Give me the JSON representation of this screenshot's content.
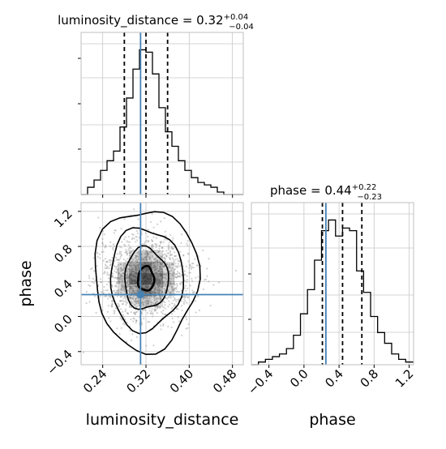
{
  "chart_data": {
    "type": "corner",
    "truths": {
      "luminosity_distance": 0.31,
      "phase": 0.25
    },
    "panels": [
      {
        "id": "hist-luminosity-distance",
        "type": "histogram",
        "title_main": "luminosity_distance = 0.32",
        "title_sup": "+0.04",
        "title_sub": "−0.04",
        "xlim": [
          0.2,
          0.5
        ],
        "bins": [
          0.2,
          0.212,
          0.224,
          0.236,
          0.248,
          0.26,
          0.272,
          0.284,
          0.296,
          0.308,
          0.32,
          0.332,
          0.344,
          0.356,
          0.368,
          0.38,
          0.392,
          0.404,
          0.416,
          0.428,
          0.44,
          0.452,
          0.464,
          0.476,
          0.488,
          0.5
        ],
        "counts": [
          0,
          3,
          6,
          10,
          14,
          18,
          28,
          40,
          52,
          60,
          59,
          50,
          36,
          26,
          20,
          14,
          10,
          7,
          5,
          4,
          3,
          1,
          0,
          0,
          0
        ],
        "quantiles": [
          0.28,
          0.32,
          0.36
        ],
        "truth": 0.31
      },
      {
        "id": "hist-phase",
        "type": "histogram",
        "title_main": "phase = 0.44",
        "title_sup": "+0.22",
        "title_sub": "−0.23",
        "xlim": [
          -0.6,
          1.25
        ],
        "bins": [
          -0.6,
          -0.52,
          -0.44,
          -0.36,
          -0.28,
          -0.2,
          -0.12,
          -0.04,
          0.04,
          0.12,
          0.2,
          0.28,
          0.36,
          0.44,
          0.52,
          0.6,
          0.68,
          0.76,
          0.84,
          0.92,
          1.0,
          1.08,
          1.16,
          1.25
        ],
        "counts": [
          0,
          1,
          2,
          3,
          4,
          6,
          11,
          19,
          28,
          39,
          50,
          54,
          48,
          51,
          50,
          35,
          27,
          18,
          12,
          8,
          4,
          2,
          1
        ],
        "quantiles": [
          0.21,
          0.44,
          0.66
        ],
        "truth": 0.25
      },
      {
        "id": "joint-luminosity-distance-phase",
        "type": "scatter-contour",
        "xlim": [
          0.2,
          0.5
        ],
        "ylim": [
          -0.55,
          1.3
        ],
        "center": [
          0.32,
          0.43
        ],
        "sigma": [
          0.045,
          0.24
        ],
        "truth": [
          0.31,
          0.25
        ],
        "contour_levels": 4
      }
    ],
    "axes": {
      "luminosity_distance": {
        "label": "luminosity_distance",
        "ticks": [
          "0.24",
          "0.32",
          "0.40",
          "0.48"
        ],
        "tick_values": [
          0.24,
          0.32,
          0.4,
          0.48
        ]
      },
      "phase": {
        "label": "phase",
        "ticks": [
          "−0.4",
          "0.0",
          "0.4",
          "0.8",
          "1.2"
        ],
        "tick_values": [
          -0.4,
          0.0,
          0.4,
          0.8,
          1.2
        ]
      }
    },
    "grid": true,
    "colors": {
      "truth": "#4682b4",
      "hist": "#000000",
      "quantile": "#000000",
      "scatter": "#999999",
      "contour": "#000000",
      "grid": "#c8c8c8"
    }
  }
}
